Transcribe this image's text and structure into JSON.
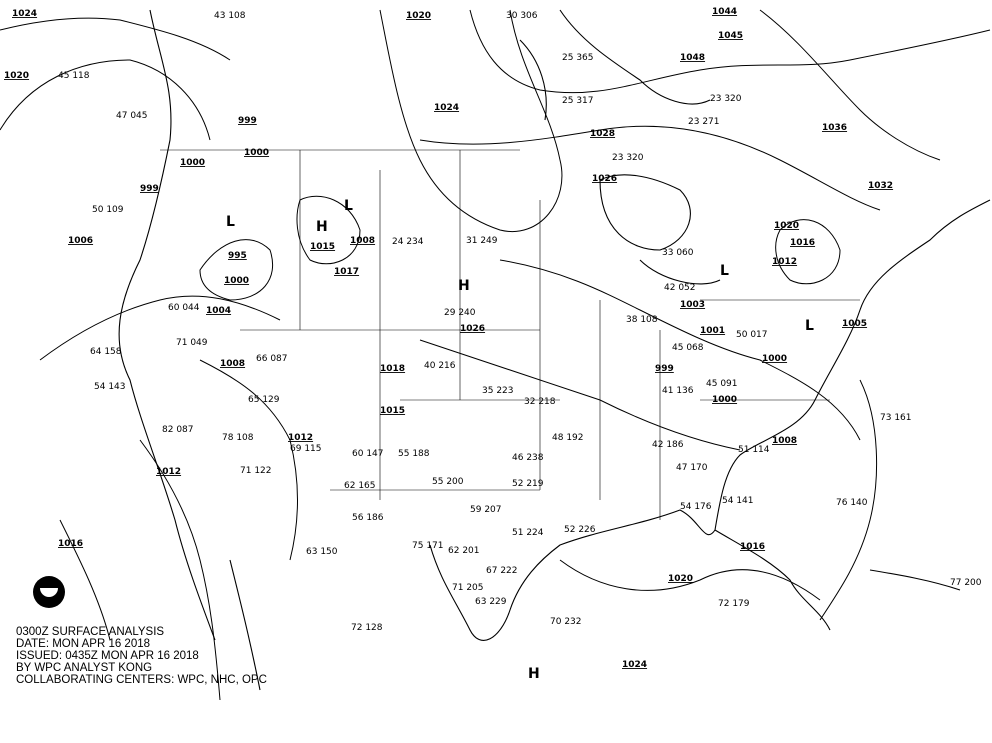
{
  "map": {
    "title": "0300Z SURFACE ANALYSIS",
    "date": "DATE: MON APR 16 2018",
    "issued": "ISSUED: 0435Z MON APR 16 2018",
    "analyst": "BY WPC ANALYST KONG",
    "centers": "COLLABORATING CENTERS: WPC, NHC, OPC",
    "logo": "NOAA"
  },
  "pressure_labels": [
    "1024",
    "1020",
    "1020",
    "1044",
    "1045",
    "1048",
    "1024",
    "1028",
    "1026",
    "1036",
    "1032",
    "1020",
    "1016",
    "1012",
    "1008",
    "1015",
    "1017",
    "1006",
    "995",
    "1000",
    "1004",
    "1008",
    "999",
    "1000",
    "1000",
    "999",
    "1026",
    "1003",
    "1001",
    "1005",
    "999",
    "1000",
    "1000",
    "1008",
    "1012",
    "1012",
    "1016",
    "1016",
    "1020",
    "1024",
    "1018",
    "1015"
  ],
  "centers_hl": [
    "H",
    "H",
    "H",
    "L",
    "L",
    "L",
    "L"
  ],
  "stations": [
    "30 306",
    "43 108",
    "25 365",
    "25 317",
    "23 320",
    "23 271",
    "33 060",
    "42 052",
    "45 068",
    "50 017",
    "38 108",
    "32 218",
    "48 192",
    "46 238",
    "52 219",
    "59 207",
    "51 224",
    "52 226",
    "62 201",
    "67 222",
    "63 229",
    "72 179",
    "70 232",
    "72 128",
    "73 161",
    "76 140",
    "77 200",
    "45 118",
    "47 045",
    "50 109",
    "60 044",
    "64 158",
    "54 143",
    "71 049",
    "66 087",
    "65 129",
    "69 115",
    "60 147",
    "55 188",
    "55 200",
    "62 165",
    "56 186",
    "75 171",
    "71 205",
    "63 150",
    "78 108",
    "71 122",
    "82 087",
    "41 136",
    "45 091",
    "51 114",
    "47 170",
    "42 186",
    "54 141",
    "54 176",
    "24 234",
    "31 249",
    "29 240",
    "35 223",
    "23 320",
    "40 216"
  ],
  "colors": {
    "ink": "#000000",
    "background": "#ffffff"
  }
}
